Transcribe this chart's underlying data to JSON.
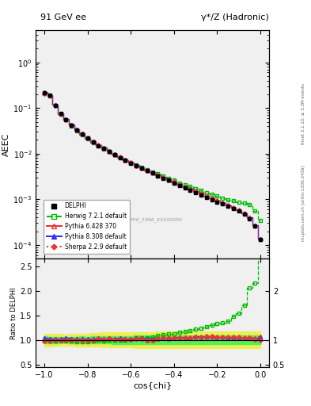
{
  "title_left": "91 GeV ee",
  "title_right": "γ*/Z (Hadronic)",
  "ylabel_main": "AEEC",
  "ylabel_ratio": "Ratio to DELPHI",
  "xlabel": "cos{chi}",
  "right_label_top": "Rivet 3.1.10; ≥ 3.3M events",
  "right_label_bottom": "mcplots.cern.ch [arXiv:1306.3436]",
  "watermark": "DELPHI_1996_S3430090",
  "ylim_main": [
    5e-05,
    5.0
  ],
  "ylim_ratio": [
    0.44,
    2.65
  ],
  "xlim": [
    -1.04,
    0.04
  ],
  "cos_chi": [
    -1.0,
    -0.975,
    -0.95,
    -0.925,
    -0.9,
    -0.875,
    -0.85,
    -0.825,
    -0.8,
    -0.775,
    -0.75,
    -0.725,
    -0.7,
    -0.675,
    -0.65,
    -0.625,
    -0.6,
    -0.575,
    -0.55,
    -0.525,
    -0.5,
    -0.475,
    -0.45,
    -0.425,
    -0.4,
    -0.375,
    -0.35,
    -0.325,
    -0.3,
    -0.275,
    -0.25,
    -0.225,
    -0.2,
    -0.175,
    -0.15,
    -0.125,
    -0.1,
    -0.075,
    -0.05,
    -0.025,
    0.0
  ],
  "aeec_delphi": [
    0.215,
    0.19,
    0.115,
    0.075,
    0.056,
    0.042,
    0.033,
    0.027,
    0.022,
    0.018,
    0.015,
    0.013,
    0.011,
    0.0095,
    0.0082,
    0.0071,
    0.0062,
    0.0054,
    0.0048,
    0.0043,
    0.0038,
    0.0033,
    0.0029,
    0.0026,
    0.0023,
    0.002,
    0.0018,
    0.0016,
    0.0014,
    0.00125,
    0.0011,
    0.00098,
    0.00088,
    0.00079,
    0.00071,
    0.00062,
    0.00055,
    0.00048,
    0.00038,
    0.00026,
    0.00013
  ],
  "aeec_delphi_err_lo": [
    0.008,
    0.007,
    0.004,
    0.0025,
    0.0018,
    0.0015,
    0.0012,
    0.001,
    0.0008,
    0.0007,
    0.0006,
    0.00055,
    0.00048,
    0.00042,
    0.00037,
    0.00032,
    0.00028,
    0.00025,
    0.000222,
    0.000198,
    0.000176,
    0.000156,
    0.000138,
    0.000123,
    0.000109,
    9.72e-05,
    8.64e-05,
    7.69e-05,
    6.85e-05,
    6.09e-05,
    5.42e-05,
    4.81e-05,
    4.28e-05,
    3.81e-05,
    3.39e-05,
    3.01e-05,
    2.68e-05,
    2.38e-05,
    1.88e-05,
    1.26e-05,
    6.3e-06
  ],
  "aeec_delphi_err_hi": [
    0.008,
    0.007,
    0.004,
    0.0025,
    0.0018,
    0.0015,
    0.0012,
    0.001,
    0.0008,
    0.0007,
    0.0006,
    0.00055,
    0.00048,
    0.00042,
    0.00037,
    0.00032,
    0.00028,
    0.00025,
    0.000222,
    0.000198,
    0.000176,
    0.000156,
    0.000138,
    0.000123,
    0.000109,
    9.72e-05,
    8.64e-05,
    7.69e-05,
    6.85e-05,
    6.09e-05,
    5.42e-05,
    4.81e-05,
    4.28e-05,
    3.81e-05,
    3.39e-05,
    3.01e-05,
    2.68e-05,
    2.38e-05,
    1.88e-05,
    1.26e-05,
    6.3e-06
  ],
  "herwig_aeec": [
    0.21,
    0.185,
    0.112,
    0.073,
    0.055,
    0.041,
    0.032,
    0.026,
    0.021,
    0.0175,
    0.0148,
    0.0128,
    0.011,
    0.0094,
    0.0082,
    0.0071,
    0.0063,
    0.0056,
    0.005,
    0.0045,
    0.004,
    0.0036,
    0.0032,
    0.0029,
    0.0026,
    0.0023,
    0.0021,
    0.0019,
    0.0017,
    0.00155,
    0.0014,
    0.00128,
    0.00117,
    0.00107,
    0.00098,
    0.00092,
    0.00085,
    0.00082,
    0.00078,
    0.00056,
    0.00035
  ],
  "pythia6_aeec": [
    0.22,
    0.192,
    0.117,
    0.076,
    0.057,
    0.043,
    0.034,
    0.027,
    0.022,
    0.0183,
    0.0155,
    0.0133,
    0.0114,
    0.0097,
    0.0084,
    0.0073,
    0.0063,
    0.0055,
    0.0049,
    0.0043,
    0.0038,
    0.0034,
    0.003,
    0.0027,
    0.0024,
    0.0021,
    0.0019,
    0.00168,
    0.00148,
    0.00132,
    0.00117,
    0.00104,
    0.00093,
    0.00083,
    0.00074,
    0.00065,
    0.00057,
    0.0005,
    0.0004,
    0.00027,
    0.00014
  ],
  "pythia8_aeec": [
    0.225,
    0.195,
    0.118,
    0.077,
    0.058,
    0.043,
    0.034,
    0.0275,
    0.0225,
    0.0185,
    0.0156,
    0.0134,
    0.0115,
    0.0098,
    0.0085,
    0.0073,
    0.0064,
    0.0056,
    0.005,
    0.0044,
    0.0039,
    0.0034,
    0.003,
    0.00268,
    0.00238,
    0.00212,
    0.00189,
    0.00168,
    0.0015,
    0.00133,
    0.00118,
    0.00105,
    0.000935,
    0.000833,
    0.000742,
    0.000656,
    0.000577,
    0.000502,
    0.000398,
    0.000267,
    0.000135
  ],
  "sherpa_aeec": [
    0.21,
    0.187,
    0.114,
    0.074,
    0.056,
    0.042,
    0.033,
    0.0268,
    0.0218,
    0.018,
    0.0153,
    0.0131,
    0.0113,
    0.0096,
    0.0083,
    0.0072,
    0.0063,
    0.0055,
    0.0049,
    0.0043,
    0.0038,
    0.0034,
    0.003,
    0.0027,
    0.0024,
    0.0021,
    0.00188,
    0.00167,
    0.00149,
    0.00132,
    0.00118,
    0.00105,
    0.000938,
    0.000837,
    0.000747,
    0.000659,
    0.000579,
    0.000502,
    0.000396,
    0.000264,
    0.00013
  ],
  "bg_color": "#f0f0f0",
  "herwig_color": "#00bb00",
  "pythia6_color": "#ee3333",
  "pythia8_color": "#3333ee",
  "sherpa_color": "#ee3333",
  "delphi_color": "#000000",
  "band_yellow": "#eeee55",
  "band_green": "#55ee55"
}
